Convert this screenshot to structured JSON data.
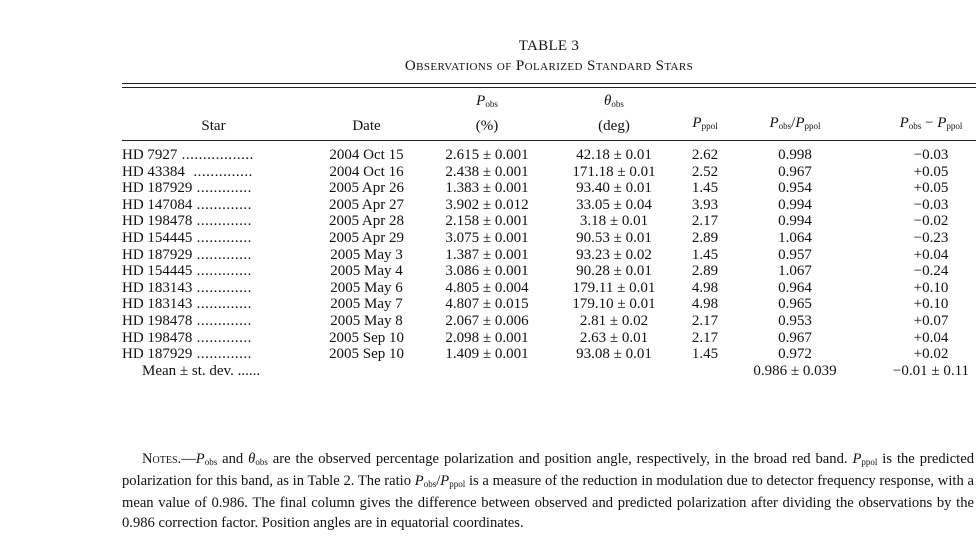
{
  "table_label": "TABLE 3",
  "table_title": "Observations of Polarized Standard Stars",
  "headers": {
    "star": "Star",
    "date": "Date",
    "pobs_sym": "P",
    "pobs_sub": "obs",
    "pobs_unit": "(%)",
    "theta_sym": "θ",
    "theta_sub": "obs",
    "theta_unit": "(deg)",
    "pppol_sym": "P",
    "pppol_sub": "ppol",
    "ratio_sym1": "P",
    "ratio_sub1": "obs",
    "ratio_sep": "/",
    "ratio_sym2": "P",
    "ratio_sub2": "ppol",
    "diff_sym1": "P",
    "diff_sub1": "obs",
    "diff_sep": " − ",
    "diff_sym2": "P",
    "diff_sub2": "ppol"
  },
  "rows": [
    {
      "star": "HD 7927",
      "leader": " .................",
      "date": "2004 Oct 15",
      "pobs": "2.615 ± 0.001",
      "theta": "42.18 ± 0.01",
      "pppol": "2.62",
      "ratio": "0.998",
      "diff": "−0.03"
    },
    {
      "star": "HD 43384",
      "leader": "  ..............",
      "date": "2004 Oct 16",
      "pobs": "2.438 ± 0.001",
      "theta": "171.18 ± 0.01",
      "pppol": "2.52",
      "ratio": "0.967",
      "diff": "+0.05"
    },
    {
      "star": "HD 187929",
      "leader": " .............",
      "date": "2005 Apr 26",
      "pobs": "1.383 ± 0.001",
      "theta": "93.40 ± 0.01",
      "pppol": "1.45",
      "ratio": "0.954",
      "diff": "+0.05"
    },
    {
      "star": "HD 147084",
      "leader": " .............",
      "date": "2005 Apr 27",
      "pobs": "3.902 ± 0.012",
      "theta": "33.05 ± 0.04",
      "pppol": "3.93",
      "ratio": "0.994",
      "diff": "−0.03"
    },
    {
      "star": "HD 198478",
      "leader": " .............",
      "date": "2005 Apr 28",
      "pobs": "2.158 ± 0.001",
      "theta": "3.18 ± 0.01",
      "pppol": "2.17",
      "ratio": "0.994",
      "diff": "−0.02"
    },
    {
      "star": "HD 154445",
      "leader": " .............",
      "date": "2005 Apr 29",
      "pobs": "3.075 ± 0.001",
      "theta": "90.53 ± 0.01",
      "pppol": "2.89",
      "ratio": "1.064",
      "diff": "−0.23"
    },
    {
      "star": "HD 187929",
      "leader": " .............",
      "date": "2005 May 3",
      "pobs": "1.387 ± 0.001",
      "theta": "93.23 ± 0.02",
      "pppol": "1.45",
      "ratio": "0.957",
      "diff": "+0.04"
    },
    {
      "star": "HD 154445",
      "leader": " .............",
      "date": "2005 May 4",
      "pobs": "3.086 ± 0.001",
      "theta": "90.28 ± 0.01",
      "pppol": "2.89",
      "ratio": "1.067",
      "diff": "−0.24"
    },
    {
      "star": "HD 183143",
      "leader": " .............",
      "date": "2005 May 6",
      "pobs": "4.805 ± 0.004",
      "theta": "179.11 ± 0.01",
      "pppol": "4.98",
      "ratio": "0.964",
      "diff": "+0.10"
    },
    {
      "star": "HD 183143",
      "leader": " .............",
      "date": "2005 May 7",
      "pobs": "4.807 ± 0.015",
      "theta": "179.10 ± 0.01",
      "pppol": "4.98",
      "ratio": "0.965",
      "diff": "+0.10"
    },
    {
      "star": "HD 198478",
      "leader": " .............",
      "date": "2005 May 8",
      "pobs": "2.067 ± 0.006",
      "theta": "2.81 ± 0.02",
      "pppol": "2.17",
      "ratio": "0.953",
      "diff": "+0.07"
    },
    {
      "star": "HD 198478",
      "leader": " .............",
      "date": "2005 Sep 10",
      "pobs": "2.098 ± 0.001",
      "theta": "2.63 ± 0.01",
      "pppol": "2.17",
      "ratio": "0.967",
      "diff": "+0.04"
    },
    {
      "star": "HD 187929",
      "leader": " .............",
      "date": "2005 Sep 10",
      "pobs": "1.409 ± 0.001",
      "theta": "93.08 ± 0.01",
      "pppol": "1.45",
      "ratio": "0.972",
      "diff": "+0.02"
    }
  ],
  "mean_row": {
    "label": "Mean ± st. dev. ......",
    "ratio": "0.986 ± 0.039",
    "diff": "−0.01 ± 0.11"
  },
  "notes": [
    {
      "t": "Notes.—",
      "sc": true
    },
    {
      "i": "P",
      "s": "obs"
    },
    {
      "t": " and "
    },
    {
      "i": "θ",
      "s": "obs"
    },
    {
      "t": " are the observed percentage polarization and position angle, respectively, in the broad red band. "
    },
    {
      "i": "P",
      "s": "ppol"
    },
    {
      "t": " is the predicted polarization for this band, as in Table 2. The ratio "
    },
    {
      "i": "P",
      "s": "obs"
    },
    {
      "t": "/"
    },
    {
      "i": "P",
      "s": "ppol"
    },
    {
      "t": " is a measure of the reduction in modulation due to detector frequency response, with a mean value of 0.986. The final column gives the difference between observed and predicted polarization after dividing the observations by the 0.986 correction factor. Position angles are in equatorial coordinates."
    }
  ]
}
